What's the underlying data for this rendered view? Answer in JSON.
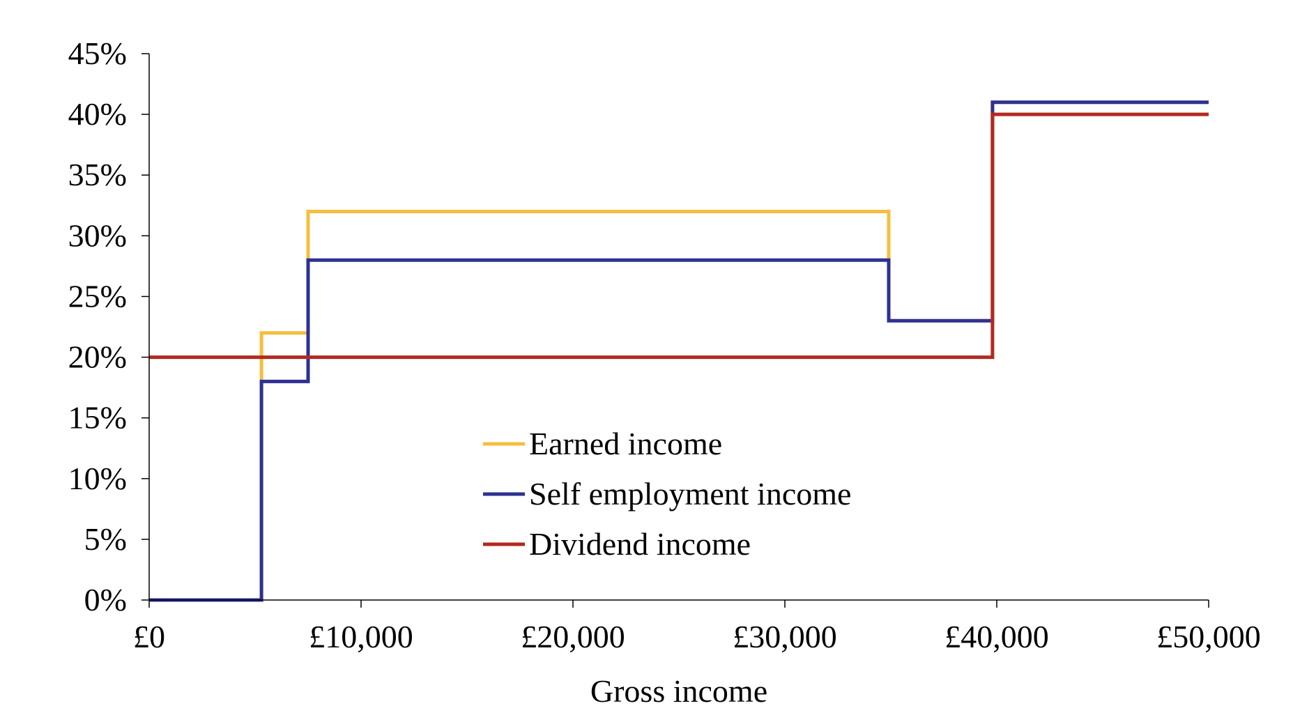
{
  "chart_data": {
    "type": "line",
    "title": "",
    "xlabel": "Gross income",
    "ylabel": "",
    "xlim": [
      0,
      50000
    ],
    "ylim": [
      0,
      45
    ],
    "x_ticks": [
      0,
      10000,
      20000,
      30000,
      40000,
      50000
    ],
    "x_tick_labels": [
      "£0",
      "£10,000",
      "£20,000",
      "£30,000",
      "£40,000",
      "£50,000"
    ],
    "y_ticks": [
      0,
      5,
      10,
      15,
      20,
      25,
      30,
      35,
      40,
      45
    ],
    "y_tick_labels": [
      "0%",
      "5%",
      "10%",
      "15%",
      "20%",
      "25%",
      "30%",
      "35%",
      "40%",
      "45%"
    ],
    "grid": false,
    "legend_position": "center",
    "series": [
      {
        "name": "Earned income",
        "color": "#F6BE3E",
        "step": true,
        "points": [
          [
            0,
            0
          ],
          [
            5300,
            0
          ],
          [
            5300,
            22
          ],
          [
            7500,
            22
          ],
          [
            7500,
            32
          ],
          [
            34900,
            32
          ],
          [
            34900,
            23
          ],
          [
            39800,
            23
          ],
          [
            39800,
            41
          ],
          [
            50000,
            41
          ]
        ]
      },
      {
        "name": "Self employment income",
        "color": "#2E3192",
        "step": true,
        "points": [
          [
            0,
            0
          ],
          [
            5300,
            0
          ],
          [
            5300,
            18
          ],
          [
            7500,
            18
          ],
          [
            7500,
            28
          ],
          [
            34900,
            28
          ],
          [
            34900,
            23
          ],
          [
            39800,
            23
          ],
          [
            39800,
            41
          ],
          [
            50000,
            41
          ]
        ]
      },
      {
        "name": "Dividend income",
        "color": "#B22A1F",
        "step": true,
        "points": [
          [
            0,
            20
          ],
          [
            39800,
            20
          ],
          [
            39800,
            40
          ],
          [
            50000,
            40
          ]
        ]
      }
    ]
  }
}
